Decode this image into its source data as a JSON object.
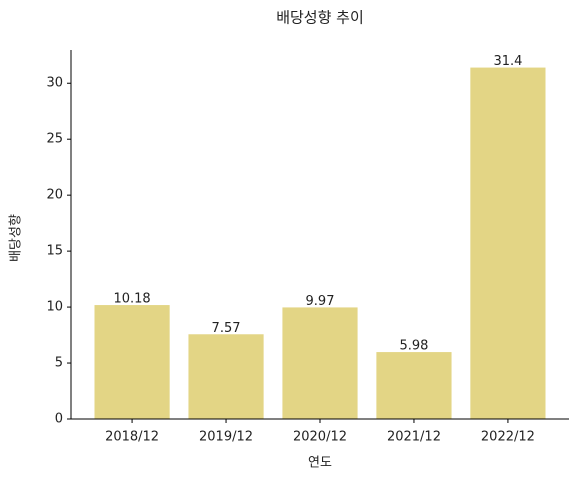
{
  "chart_data": {
    "type": "bar",
    "title": "배당성향 추이",
    "xlabel": "연도",
    "ylabel": "배당성향",
    "categories": [
      "2018/12",
      "2019/12",
      "2020/12",
      "2021/12",
      "2022/12"
    ],
    "values": [
      10.18,
      7.57,
      9.97,
      5.98,
      31.4
    ],
    "color": "#e3d585",
    "ylim": [
      0,
      32.97
    ],
    "yticks": [
      0,
      5,
      10,
      15,
      20,
      25,
      30
    ],
    "grid": false
  }
}
